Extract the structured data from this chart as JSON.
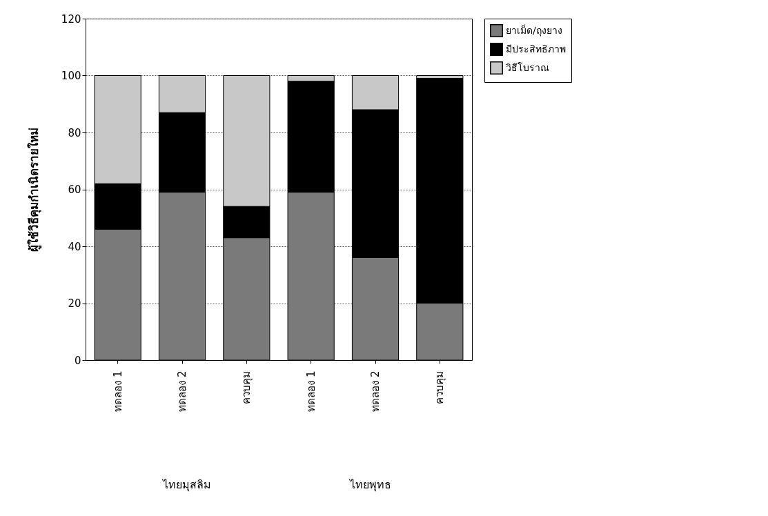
{
  "chart_data": {
    "type": "bar",
    "stacked": true,
    "ylabel": "ผู้ใช้วิธีคุมกำเนิดรายใหม่",
    "categories": [
      "ทดลอง 1",
      "ทดลอง 2",
      "ควบคุม",
      "ทดลอง 1",
      "ทดลอง 2",
      "ควบคุม"
    ],
    "series": [
      {
        "name": "ยาเม็ด/ถุงยาง",
        "color": "#7a7a7a",
        "values": [
          46,
          59,
          43,
          59,
          36,
          20
        ]
      },
      {
        "name": "มีประสิทธิภาพ",
        "color": "#000000",
        "values": [
          16,
          28,
          11,
          39,
          52,
          79
        ]
      },
      {
        "name": "วิธีโบราณ",
        "color": "#c8c8c8",
        "values": [
          38,
          13,
          46,
          2,
          12,
          1
        ]
      }
    ],
    "ylim": [
      0,
      120
    ],
    "yticks": [
      0,
      20,
      40,
      60,
      80,
      100,
      120
    ],
    "grid": "y",
    "legend": "top right",
    "annotations": [
      "ไทยมุสลิม",
      "ไทยพุทธ"
    ]
  }
}
